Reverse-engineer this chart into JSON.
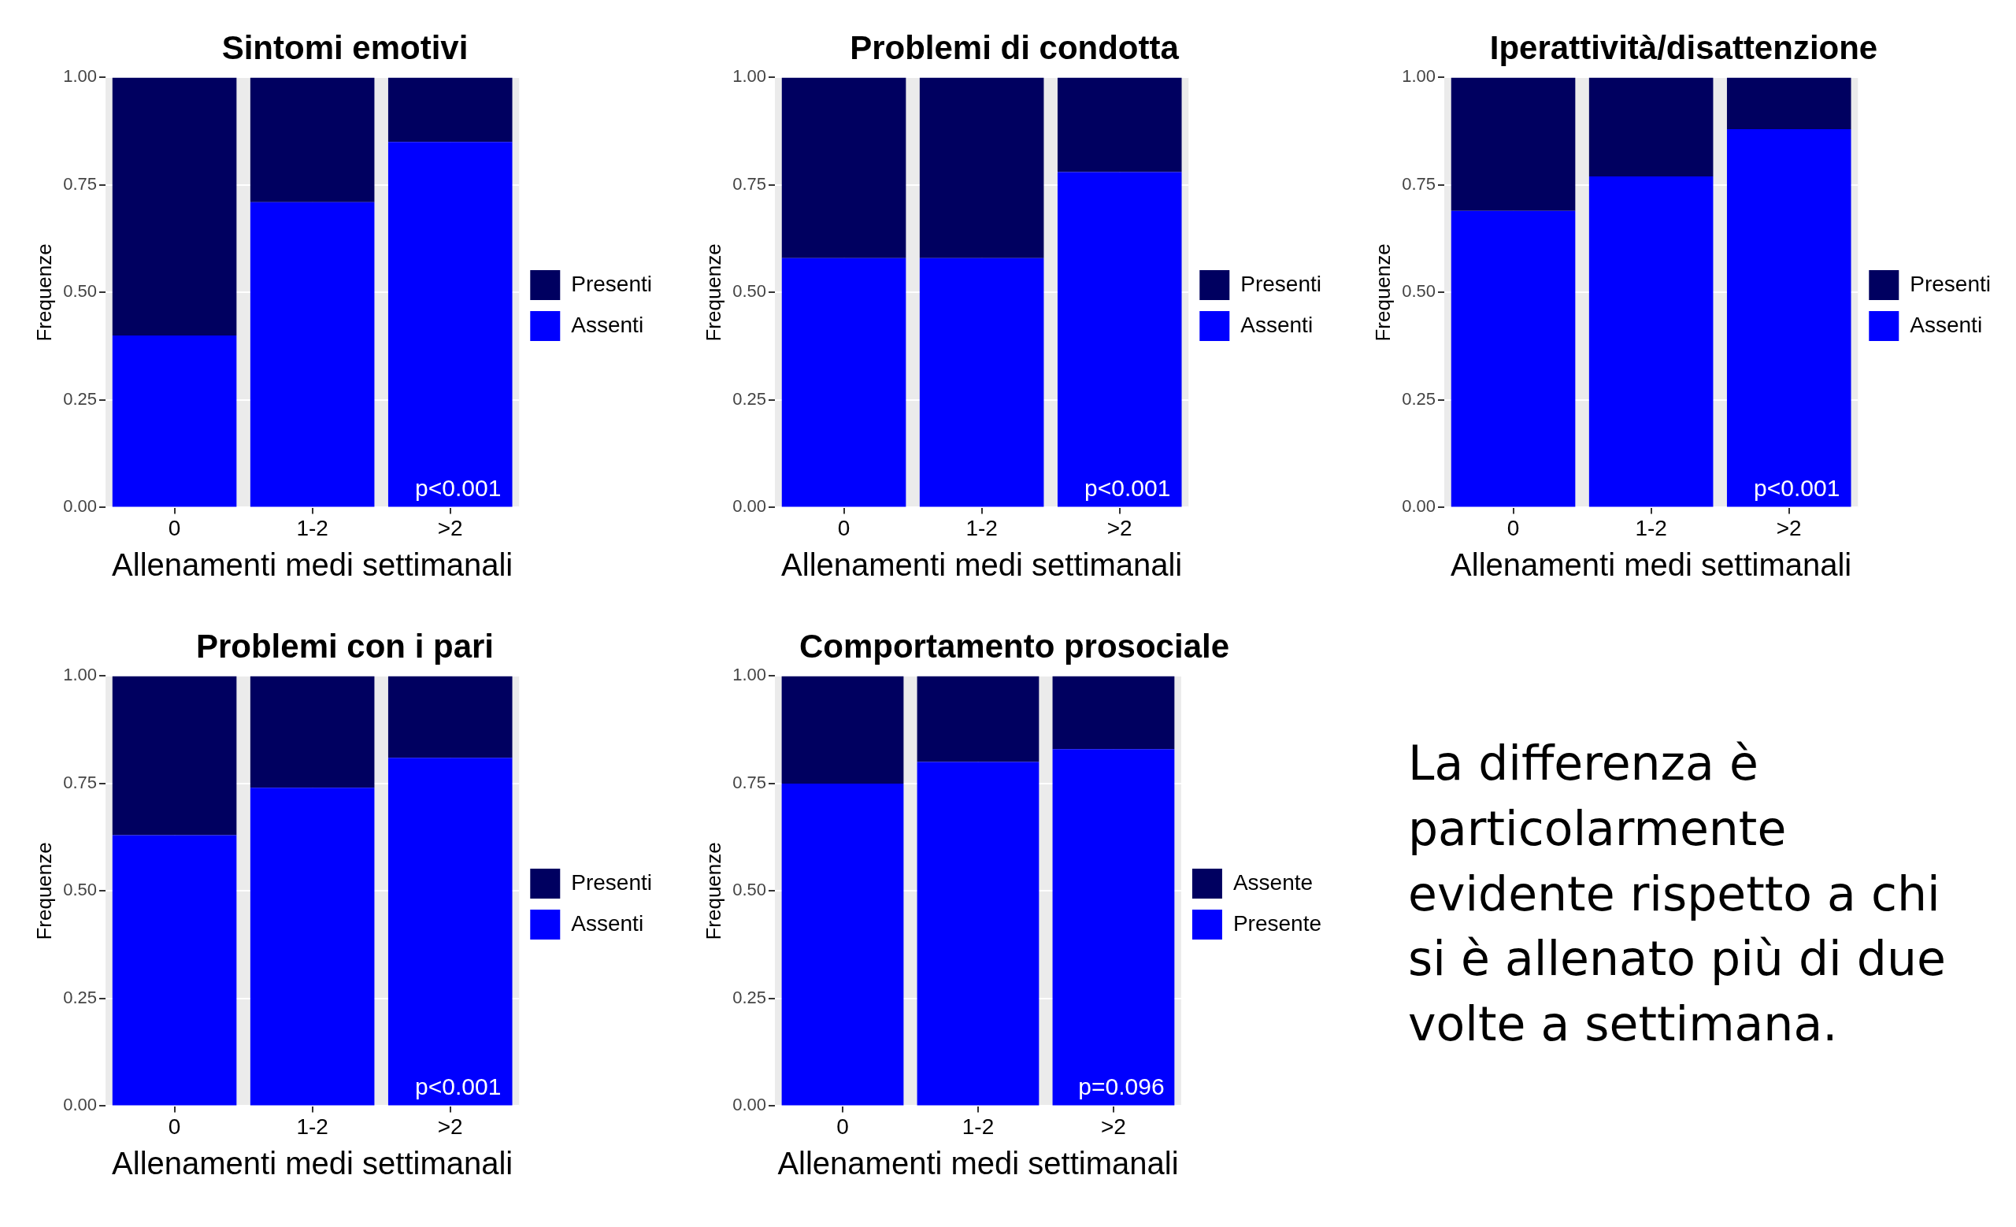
{
  "chart_data": [
    {
      "type": "bar",
      "stacked": true,
      "title": "Sintomi emotivi",
      "xlabel": "Allenamenti medi settimanali",
      "ylabel": "Frequenze",
      "categories": [
        "0",
        "1-2",
        ">2"
      ],
      "series": [
        {
          "name": "Assenti",
          "color": "#0000ff",
          "values": [
            0.4,
            0.71,
            0.85
          ]
        },
        {
          "name": "Presenti",
          "color": "#000060",
          "values": [
            0.6,
            0.29,
            0.15
          ]
        }
      ],
      "ylim": [
        0,
        1
      ],
      "yticks": [
        {
          "value": 0,
          "label": "0.00"
        },
        {
          "value": 0.25,
          "label": "0.25"
        },
        {
          "value": 0.5,
          "label": "0.50"
        },
        {
          "value": 0.75,
          "label": "0.75"
        },
        {
          "value": 1,
          "label": "1.00"
        }
      ],
      "grid": true,
      "legend": "right",
      "annotations": [
        "p<0.001"
      ]
    },
    {
      "type": "bar",
      "stacked": true,
      "title": "Problemi di condotta",
      "xlabel": "Allenamenti medi settimanali",
      "ylabel": "Frequenze",
      "categories": [
        "0",
        "1-2",
        ">2"
      ],
      "series": [
        {
          "name": "Assenti",
          "color": "#0000ff",
          "values": [
            0.58,
            0.58,
            0.78
          ]
        },
        {
          "name": "Presenti",
          "color": "#000060",
          "values": [
            0.42,
            0.42,
            0.22
          ]
        }
      ],
      "ylim": [
        0,
        1
      ],
      "yticks": [
        {
          "value": 0,
          "label": "0.00"
        },
        {
          "value": 0.25,
          "label": "0.25"
        },
        {
          "value": 0.5,
          "label": "0.50"
        },
        {
          "value": 0.75,
          "label": "0.75"
        },
        {
          "value": 1,
          "label": "1.00"
        }
      ],
      "grid": true,
      "legend": "right",
      "annotations": [
        "p<0.001"
      ]
    },
    {
      "type": "bar",
      "stacked": true,
      "title": "Iperattività/disattenzione",
      "xlabel": "Allenamenti medi settimanali",
      "ylabel": "Frequenze",
      "categories": [
        "0",
        "1-2",
        ">2"
      ],
      "series": [
        {
          "name": "Assenti",
          "color": "#0000ff",
          "values": [
            0.69,
            0.77,
            0.88
          ]
        },
        {
          "name": "Presenti",
          "color": "#000060",
          "values": [
            0.31,
            0.23,
            0.12
          ]
        }
      ],
      "ylim": [
        0,
        1
      ],
      "yticks": [
        {
          "value": 0,
          "label": "0.00"
        },
        {
          "value": 0.25,
          "label": "0.25"
        },
        {
          "value": 0.5,
          "label": "0.50"
        },
        {
          "value": 0.75,
          "label": "0.75"
        },
        {
          "value": 1,
          "label": "1.00"
        }
      ],
      "grid": true,
      "legend": "right",
      "annotations": [
        "p<0.001"
      ]
    },
    {
      "type": "bar",
      "stacked": true,
      "title": "Problemi con i pari",
      "xlabel": "Allenamenti medi settimanali",
      "ylabel": "Frequenze",
      "categories": [
        "0",
        "1-2",
        ">2"
      ],
      "series": [
        {
          "name": "Assenti",
          "color": "#0000ff",
          "values": [
            0.63,
            0.74,
            0.81
          ]
        },
        {
          "name": "Presenti",
          "color": "#000060",
          "values": [
            0.37,
            0.26,
            0.19
          ]
        }
      ],
      "ylim": [
        0,
        1
      ],
      "yticks": [
        {
          "value": 0,
          "label": "0.00"
        },
        {
          "value": 0.25,
          "label": "0.25"
        },
        {
          "value": 0.5,
          "label": "0.50"
        },
        {
          "value": 0.75,
          "label": "0.75"
        },
        {
          "value": 1,
          "label": "1.00"
        }
      ],
      "grid": true,
      "legend": "right",
      "annotations": [
        "p<0.001"
      ]
    },
    {
      "type": "bar",
      "stacked": true,
      "title": "Comportamento prosociale",
      "xlabel": "Allenamenti medi settimanali",
      "ylabel": "Frequenze",
      "categories": [
        "0",
        "1-2",
        ">2"
      ],
      "series": [
        {
          "name": "Presente",
          "color": "#0000ff",
          "values": [
            0.75,
            0.8,
            0.83
          ]
        },
        {
          "name": "Assente",
          "color": "#000060",
          "values": [
            0.25,
            0.2,
            0.17
          ]
        }
      ],
      "ylim": [
        0,
        1
      ],
      "yticks": [
        {
          "value": 0,
          "label": "0.00"
        },
        {
          "value": 0.25,
          "label": "0.25"
        },
        {
          "value": 0.5,
          "label": "0.50"
        },
        {
          "value": 0.75,
          "label": "0.75"
        },
        {
          "value": 1,
          "label": "1.00"
        }
      ],
      "grid": true,
      "legend": "right",
      "annotations": [
        "p=0.096"
      ]
    },
    {
      "type": "other",
      "annotations": [
        "La differenza è particolarmente evidente rispetto a chi si è allenato più di due volte a settimana."
      ]
    }
  ]
}
